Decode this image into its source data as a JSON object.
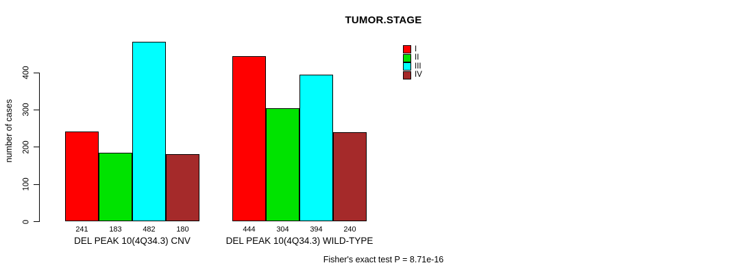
{
  "chart_data": {
    "type": "bar",
    "title": "TUMOR.STAGE",
    "xlabel": "",
    "ylabel": "number of cases",
    "ylim": [
      0,
      490
    ],
    "yticks": [
      0,
      100,
      200,
      300,
      400
    ],
    "grid": false,
    "legend_position": "top-right",
    "categories": [
      "DEL PEAK 10(4Q34.3) CNV",
      "DEL PEAK 10(4Q34.3) WILD-TYPE"
    ],
    "series": [
      {
        "name": "I",
        "color": "#ff0000",
        "values": [
          241,
          444
        ]
      },
      {
        "name": "II",
        "color": "#00e300",
        "values": [
          183,
          304
        ]
      },
      {
        "name": "III",
        "color": "#00ffff",
        "values": [
          482,
          394
        ]
      },
      {
        "name": "IV",
        "color": "#a52a2a",
        "values": [
          180,
          240
        ]
      }
    ],
    "bar_value_labels_shown": true,
    "annotation": "Fisher's exact test P = 8.71e-16"
  }
}
